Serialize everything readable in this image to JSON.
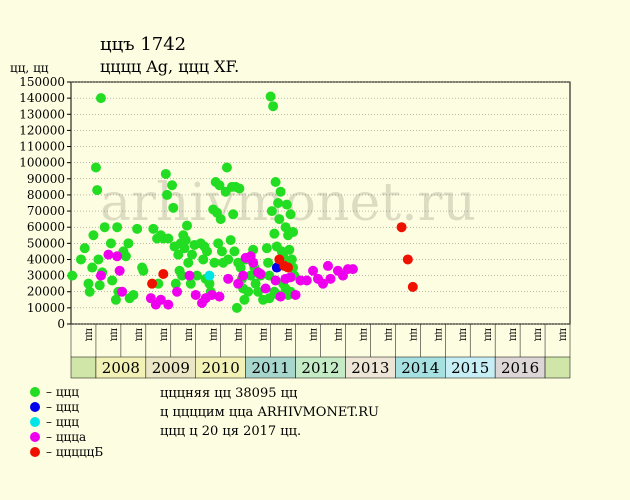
{
  "header": {
    "title": "ццъ 1742",
    "subtitle": "цццц Ag, ццц XF.",
    "y_unit": "цц, цц",
    "watermark": "arhivmonet.ru"
  },
  "legend": [
    {
      "label": "– ццц",
      "color": "#22dd22"
    },
    {
      "label": "– ццц",
      "color": "#0000ee"
    },
    {
      "label": "– ццц",
      "color": "#00e5e5"
    },
    {
      "label": "– цццa",
      "color": "#ee00ee"
    },
    {
      "label": "– цццццБ",
      "color": "#ee1100"
    }
  ],
  "notes": {
    "line1": "цццняя цц 38095 цц",
    "line2": "ц ццццим ццa ARHIVMONET.RU",
    "line3": "ццц ц 20 ця 2017 цц."
  },
  "chart_data": {
    "type": "scatter",
    "ylim": [
      0,
      150000
    ],
    "yticks": [
      0,
      10000,
      20000,
      30000,
      40000,
      50000,
      60000,
      70000,
      80000,
      90000,
      100000,
      110000,
      120000,
      130000,
      140000,
      150000
    ],
    "half_label": "цц",
    "years": [
      {
        "label": "2008",
        "color": "#f2f2b6"
      },
      {
        "label": "2009",
        "color": "#eae6c6"
      },
      {
        "label": "2010",
        "color": "#f2f2b6"
      },
      {
        "label": "2011",
        "color": "#a7d6cc"
      },
      {
        "label": "2012",
        "color": "#c4ebc6"
      },
      {
        "label": "2013",
        "color": "#ede5d5"
      },
      {
        "label": "2014",
        "color": "#a7e0e0"
      },
      {
        "label": "2015",
        "color": "#c7edf5"
      },
      {
        "label": "2016",
        "color": "#dcd6d6"
      }
    ],
    "x_unit": "half-years from 2007-H2",
    "series": [
      {
        "color": "#22dd22",
        "points": [
          [
            0.05,
            30000
          ],
          [
            0.4,
            40000
          ],
          [
            0.55,
            47000
          ],
          [
            0.7,
            25000
          ],
          [
            0.75,
            20000
          ],
          [
            0.85,
            35000
          ],
          [
            0.9,
            55000
          ],
          [
            1.0,
            97000
          ],
          [
            1.05,
            83000
          ],
          [
            1.1,
            40000
          ],
          [
            1.15,
            24000
          ],
          [
            1.2,
            140000
          ],
          [
            1.25,
            32000
          ],
          [
            1.35,
            60000
          ],
          [
            1.6,
            50000
          ],
          [
            1.65,
            27000
          ],
          [
            1.8,
            15000
          ],
          [
            1.85,
            60000
          ],
          [
            1.9,
            20000
          ],
          [
            2.1,
            45000
          ],
          [
            2.2,
            42000
          ],
          [
            2.3,
            50000
          ],
          [
            2.35,
            16000
          ],
          [
            2.5,
            18000
          ],
          [
            2.65,
            59000
          ],
          [
            2.85,
            35000
          ],
          [
            2.9,
            33000
          ],
          [
            3.3,
            59000
          ],
          [
            3.45,
            53000
          ],
          [
            3.5,
            25000
          ],
          [
            3.6,
            55000
          ],
          [
            3.7,
            53000
          ],
          [
            3.8,
            93000
          ],
          [
            3.85,
            80000
          ],
          [
            3.9,
            53000
          ],
          [
            4.05,
            86000
          ],
          [
            4.1,
            72000
          ],
          [
            4.15,
            48000
          ],
          [
            4.2,
            25000
          ],
          [
            4.3,
            43000
          ],
          [
            4.35,
            33000
          ],
          [
            4.4,
            50000
          ],
          [
            4.45,
            30000
          ],
          [
            4.5,
            55000
          ],
          [
            4.55,
            47000
          ],
          [
            4.6,
            52000
          ],
          [
            4.65,
            61000
          ],
          [
            4.7,
            38000
          ],
          [
            4.8,
            25000
          ],
          [
            4.85,
            43000
          ],
          [
            4.95,
            49000
          ],
          [
            5.05,
            30000
          ],
          [
            5.2,
            50000
          ],
          [
            5.3,
            40000
          ],
          [
            5.35,
            48000
          ],
          [
            5.4,
            28000
          ],
          [
            5.45,
            45000
          ],
          [
            5.55,
            25000
          ],
          [
            5.6,
            20000
          ],
          [
            5.7,
            71000
          ],
          [
            5.75,
            38000
          ],
          [
            5.8,
            88000
          ],
          [
            5.85,
            69000
          ],
          [
            5.9,
            50000
          ],
          [
            5.95,
            86000
          ],
          [
            6.0,
            65000
          ],
          [
            6.05,
            45000
          ],
          [
            6.1,
            38000
          ],
          [
            6.2,
            82000
          ],
          [
            6.25,
            97000
          ],
          [
            6.3,
            40000
          ],
          [
            6.4,
            52000
          ],
          [
            6.45,
            85000
          ],
          [
            6.5,
            68000
          ],
          [
            6.55,
            45000
          ],
          [
            6.6,
            85000
          ],
          [
            6.65,
            10000
          ],
          [
            6.7,
            38000
          ],
          [
            6.75,
            84000
          ],
          [
            6.8,
            35000
          ],
          [
            6.85,
            28000
          ],
          [
            6.9,
            22000
          ],
          [
            6.95,
            15000
          ],
          [
            7.0,
            40000
          ],
          [
            7.1,
            20000
          ],
          [
            7.2,
            30000
          ],
          [
            7.3,
            46000
          ],
          [
            7.35,
            35000
          ],
          [
            7.4,
            25000
          ],
          [
            7.5,
            20000
          ],
          [
            7.6,
            30000
          ],
          [
            7.7,
            15000
          ],
          [
            7.85,
            47000
          ],
          [
            7.9,
            38000
          ],
          [
            7.95,
            30000
          ],
          [
            8.0,
            141000
          ],
          [
            8.05,
            70000
          ],
          [
            8.1,
            135000
          ],
          [
            8.15,
            56000
          ],
          [
            8.2,
            88000
          ],
          [
            8.25,
            48000
          ],
          [
            8.3,
            75000
          ],
          [
            8.35,
            65000
          ],
          [
            8.4,
            82000
          ],
          [
            8.45,
            45000
          ],
          [
            8.5,
            42000
          ],
          [
            8.55,
            38000
          ],
          [
            8.6,
            60000
          ],
          [
            8.65,
            74000
          ],
          [
            8.7,
            55000
          ],
          [
            8.75,
            46000
          ],
          [
            8.8,
            68000
          ],
          [
            8.85,
            40000
          ],
          [
            8.9,
            57000
          ],
          [
            8.95,
            30000
          ],
          [
            8.5,
            25000
          ],
          [
            8.6,
            22000
          ],
          [
            8.7,
            18000
          ],
          [
            8.8,
            20000
          ],
          [
            8.9,
            35000
          ],
          [
            8.3,
            18000
          ],
          [
            8.15,
            20000
          ],
          [
            7.95,
            16000
          ]
        ]
      },
      {
        "color": "#0000ee",
        "points": [
          [
            8.25,
            35000
          ]
        ]
      },
      {
        "color": "#00e5e5",
        "points": [
          [
            5.55,
            30000
          ]
        ]
      },
      {
        "color": "#ee00ee",
        "points": [
          [
            1.2,
            30000
          ],
          [
            1.5,
            43000
          ],
          [
            1.85,
            42000
          ],
          [
            1.95,
            33000
          ],
          [
            2.05,
            20000
          ],
          [
            3.2,
            16000
          ],
          [
            3.4,
            12000
          ],
          [
            3.6,
            15000
          ],
          [
            3.9,
            12000
          ],
          [
            4.25,
            20000
          ],
          [
            4.75,
            30000
          ],
          [
            5.0,
            18000
          ],
          [
            5.25,
            13000
          ],
          [
            5.4,
            16000
          ],
          [
            5.65,
            18000
          ],
          [
            5.95,
            17000
          ],
          [
            6.3,
            28000
          ],
          [
            6.7,
            25000
          ],
          [
            6.9,
            30000
          ],
          [
            7.0,
            41000
          ],
          [
            7.2,
            42000
          ],
          [
            7.3,
            38000
          ],
          [
            7.5,
            32000
          ],
          [
            7.6,
            31000
          ],
          [
            7.8,
            22000
          ],
          [
            8.2,
            27000
          ],
          [
            8.4,
            17000
          ],
          [
            8.6,
            28000
          ],
          [
            8.8,
            29000
          ],
          [
            9.0,
            18000
          ],
          [
            9.2,
            27000
          ],
          [
            9.45,
            27000
          ],
          [
            9.7,
            33000
          ],
          [
            9.9,
            28000
          ],
          [
            10.1,
            25000
          ],
          [
            10.3,
            36000
          ],
          [
            10.4,
            28000
          ],
          [
            10.7,
            33000
          ],
          [
            10.9,
            30000
          ],
          [
            11.1,
            34000
          ],
          [
            11.3,
            34000
          ]
        ]
      },
      {
        "color": "#ee1100",
        "points": [
          [
            3.25,
            25000
          ],
          [
            3.7,
            31000
          ],
          [
            8.35,
            40000
          ],
          [
            8.55,
            36000
          ],
          [
            8.7,
            35000
          ],
          [
            13.25,
            60000
          ],
          [
            13.5,
            40000
          ],
          [
            13.7,
            23000
          ]
        ]
      }
    ]
  }
}
